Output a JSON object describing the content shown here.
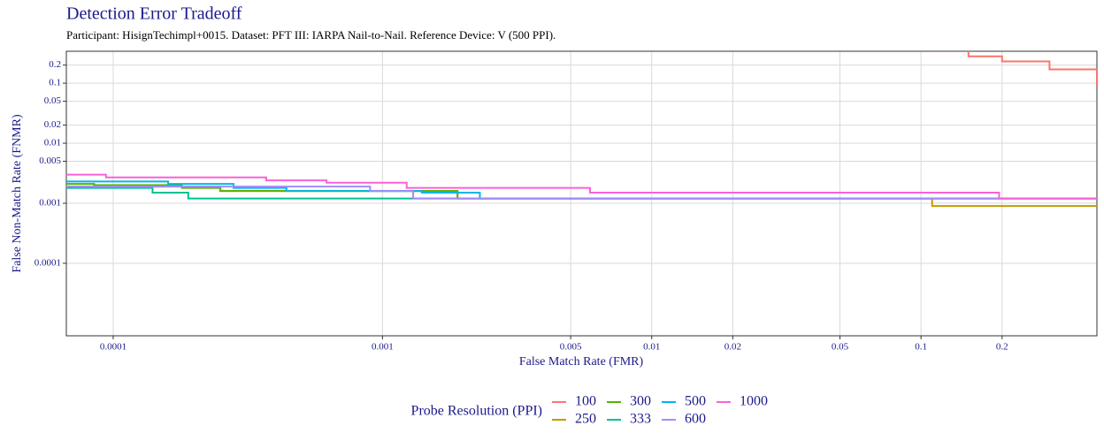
{
  "chart_data": {
    "type": "step",
    "title": "Detection Error Tradeoff",
    "subtitle": "Participant: HisignTechimpl+0015. Dataset: PFT III: IARPA Nail-to-Nail. Reference Device: V (500 PPI).",
    "x_label": "False Match Rate (FMR)",
    "y_label": "False Non-Match Rate (FNMR)",
    "legend_title": "Probe Resolution (PPI)",
    "legend_position": "bottom",
    "xscale": "log",
    "yscale": "log",
    "grid": true,
    "xlim": [
      6.7e-05,
      0.45
    ],
    "ylim": [
      6.2e-06,
      0.34
    ],
    "xticks": [
      0.0001,
      0.001,
      0.005,
      0.01,
      0.02,
      0.05,
      0.1,
      0.2
    ],
    "yticks": [
      0.2,
      0.1,
      0.05,
      0.02,
      0.01,
      0.005,
      0.001,
      0.0001
    ],
    "series": [
      {
        "name": "100",
        "color": "#F8766D",
        "x": [
          0.1,
          0.15,
          0.2,
          0.3,
          0.45
        ],
        "values": [
          0.34,
          0.28,
          0.23,
          0.17,
          0.09
        ]
      },
      {
        "name": "250",
        "color": "#C49A00",
        "x": [
          6.7e-05,
          0.00025,
          0.0019,
          0.11,
          0.45
        ],
        "values": [
          0.0019,
          0.0016,
          0.0012,
          0.0009,
          0.0009
        ]
      },
      {
        "name": "300",
        "color": "#53B400",
        "x": [
          6.7e-05,
          8.5e-05,
          0.00018,
          0.00025,
          0.0019,
          0.45
        ],
        "values": [
          0.0021,
          0.002,
          0.0018,
          0.0016,
          0.0012,
          0.0012
        ]
      },
      {
        "name": "333",
        "color": "#00C094",
        "x": [
          6.7e-05,
          0.00014,
          0.00019,
          0.45
        ],
        "values": [
          0.0018,
          0.0015,
          0.0012,
          0.0012
        ]
      },
      {
        "name": "500",
        "color": "#00B6EB",
        "x": [
          6.7e-05,
          0.00016,
          0.00028,
          0.00044,
          0.0014,
          0.0023,
          0.45
        ],
        "values": [
          0.0023,
          0.0021,
          0.0018,
          0.0016,
          0.0015,
          0.0012,
          0.0012
        ]
      },
      {
        "name": "600",
        "color": "#A58AFF",
        "x": [
          6.7e-05,
          0.0009,
          0.0013,
          0.45
        ],
        "values": [
          0.0019,
          0.0016,
          0.0012,
          0.0012
        ]
      },
      {
        "name": "1000",
        "color": "#FB61D7",
        "x": [
          6.7e-05,
          9.4e-05,
          0.00037,
          0.00062,
          0.00123,
          0.0059,
          0.195,
          0.45
        ],
        "values": [
          0.003,
          0.0027,
          0.0024,
          0.0022,
          0.0018,
          0.0015,
          0.0012,
          0.0012
        ]
      }
    ]
  }
}
